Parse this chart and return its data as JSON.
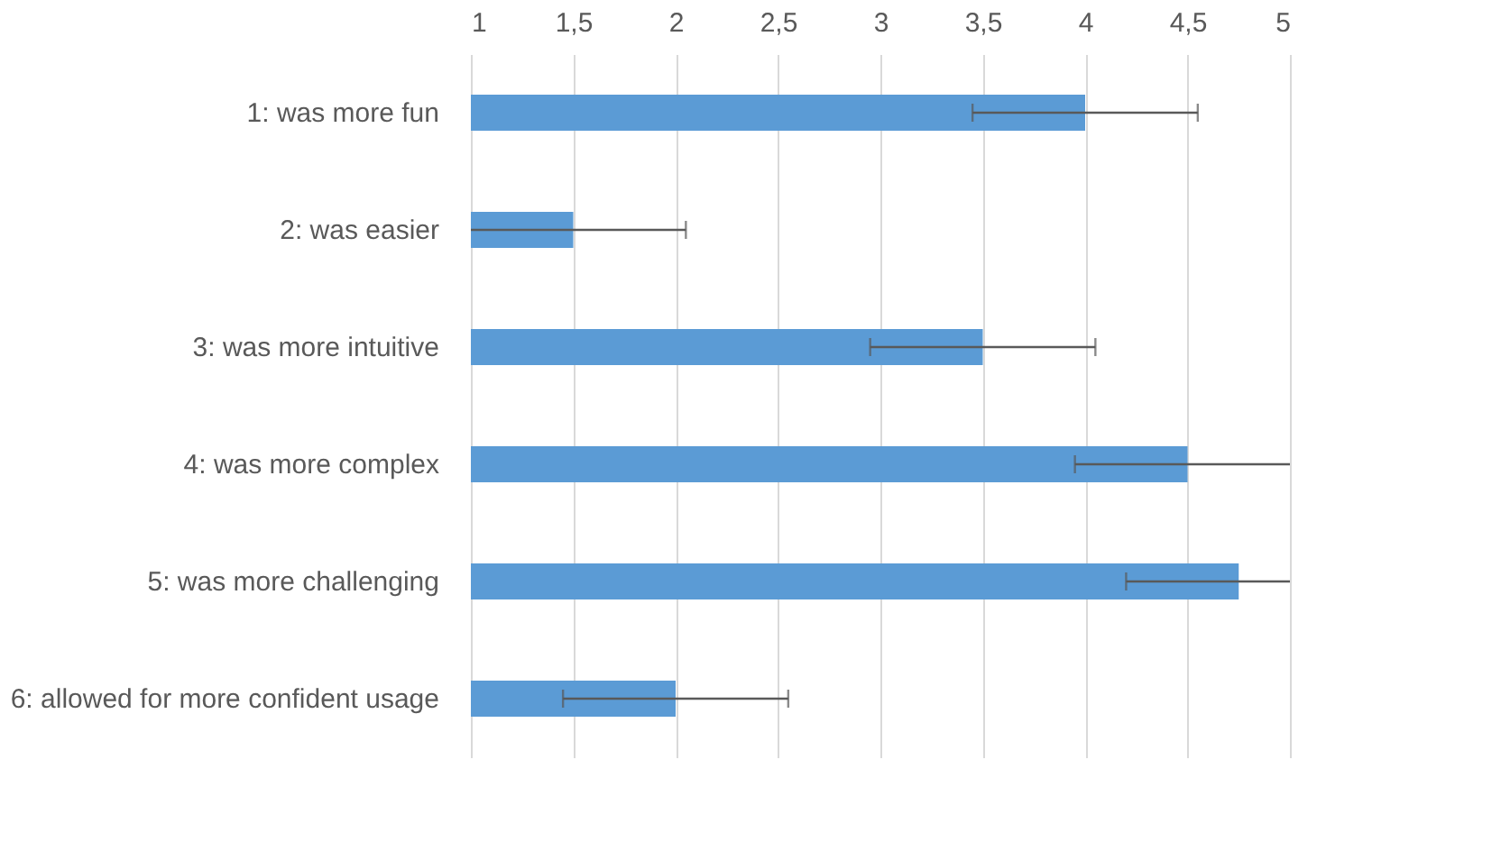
{
  "chart_data": {
    "type": "bar",
    "orientation": "horizontal",
    "categories": [
      "1: was more fun",
      "2: was easier",
      "3: was more intuitive",
      "4: was more complex",
      "5: was more challenging",
      "6: allowed for more confident usage"
    ],
    "values": [
      4.0,
      1.5,
      3.5,
      4.5,
      4.75,
      2.0
    ],
    "errors": [
      0.55,
      [
        1,
        2.05
      ],
      0.55,
      [
        3.95,
        5
      ],
      [
        4.2,
        5
      ],
      0.55
    ],
    "color": "#5b9bd5",
    "xlim": [
      1,
      5
    ],
    "xticks": [
      1,
      {
        "value": 1.5,
        "label": "1,5"
      },
      2,
      {
        "value": 2.5,
        "label": "2,5"
      },
      3,
      {
        "value": 3.5,
        "label": "3,5"
      },
      4,
      {
        "value": 4.5,
        "label": "4,5"
      },
      5
    ],
    "grid": "x"
  }
}
